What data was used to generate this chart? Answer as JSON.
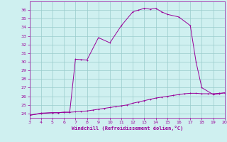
{
  "xlabel": "Windchill (Refroidissement éolien,°C)",
  "xlim": [
    3,
    20
  ],
  "ylim": [
    23.5,
    37
  ],
  "xticks": [
    3,
    4,
    5,
    6,
    7,
    8,
    9,
    10,
    11,
    12,
    13,
    14,
    15,
    16,
    17,
    18,
    19,
    20
  ],
  "yticks": [
    24,
    25,
    26,
    27,
    28,
    29,
    30,
    31,
    32,
    33,
    34,
    35,
    36
  ],
  "background_color": "#cff0f0",
  "grid_color": "#99cccc",
  "line_color": "#990099",
  "curve1_x": [
    3,
    4,
    5,
    5.5,
    6,
    6.5,
    7,
    7.5,
    8,
    8.5,
    9,
    9.5,
    10,
    10.5,
    11,
    11.5,
    12,
    12.5,
    13,
    13.5,
    14,
    14.5,
    15,
    15.5,
    16,
    16.5,
    17,
    17.5,
    18,
    18.5,
    19,
    19.5,
    20
  ],
  "curve1_y": [
    23.8,
    24.0,
    24.1,
    24.1,
    24.15,
    24.15,
    24.2,
    24.25,
    24.3,
    24.4,
    24.5,
    24.6,
    24.7,
    24.8,
    24.9,
    25.0,
    25.2,
    25.35,
    25.5,
    25.65,
    25.8,
    25.9,
    26.0,
    26.1,
    26.2,
    26.3,
    26.35,
    26.35,
    26.3,
    26.3,
    26.3,
    26.35,
    26.4
  ],
  "curve2_x": [
    3,
    4,
    5,
    5.5,
    6,
    6.5,
    7,
    7.5,
    8,
    9,
    10,
    11,
    12,
    12.5,
    13,
    13.5,
    14,
    14.5,
    15,
    16,
    17,
    17.5,
    18,
    19,
    19.5,
    20
  ],
  "curve2_y": [
    23.8,
    24.05,
    24.1,
    24.1,
    24.15,
    24.15,
    30.3,
    30.25,
    30.2,
    32.8,
    32.2,
    34.2,
    35.8,
    36.0,
    36.2,
    36.1,
    36.2,
    35.8,
    35.5,
    35.2,
    34.2,
    30.0,
    27.0,
    26.2,
    26.3,
    26.4
  ],
  "marker_size": 1.8
}
